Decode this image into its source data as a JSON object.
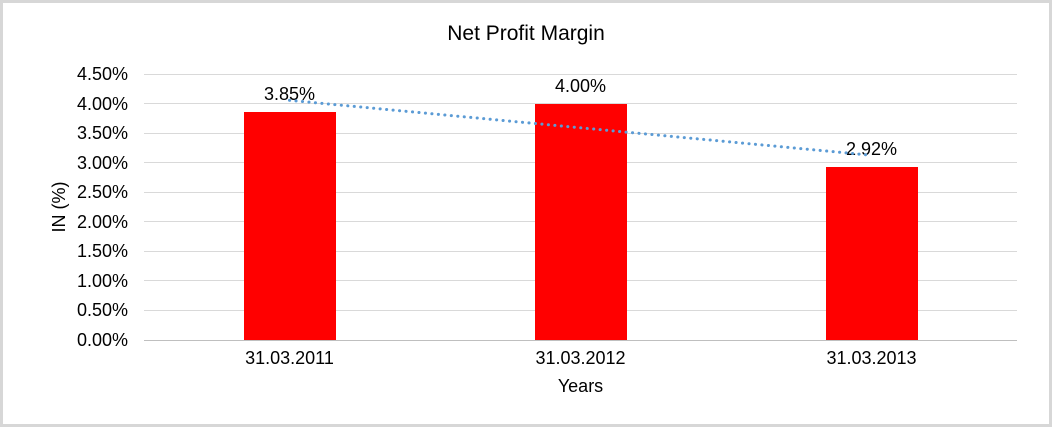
{
  "chart_data": {
    "type": "bar",
    "title": "Net Profit Margin",
    "xlabel": "Years",
    "ylabel": "IN (%)",
    "categories": [
      "31.03.2011",
      "31.03.2012",
      "31.03.2013"
    ],
    "values": [
      3.85,
      4.0,
      2.92
    ],
    "data_labels": [
      "3.85%",
      "4.00%",
      "2.92%"
    ],
    "series_name": "Net Profit Margin",
    "ylim": [
      0,
      4.5
    ],
    "ytick_step": 0.5,
    "yticks": [
      "0.00%",
      "0.50%",
      "1.00%",
      "1.50%",
      "2.00%",
      "2.50%",
      "3.00%",
      "3.50%",
      "4.00%",
      "4.50%"
    ],
    "grid": true,
    "legend": false,
    "bar_color": "#FF0000",
    "gridline_color": "#D9D9D9",
    "text_color": "#000000",
    "trendline": {
      "type": "linear",
      "style": "dotted",
      "color": "#5B9BD5"
    }
  }
}
